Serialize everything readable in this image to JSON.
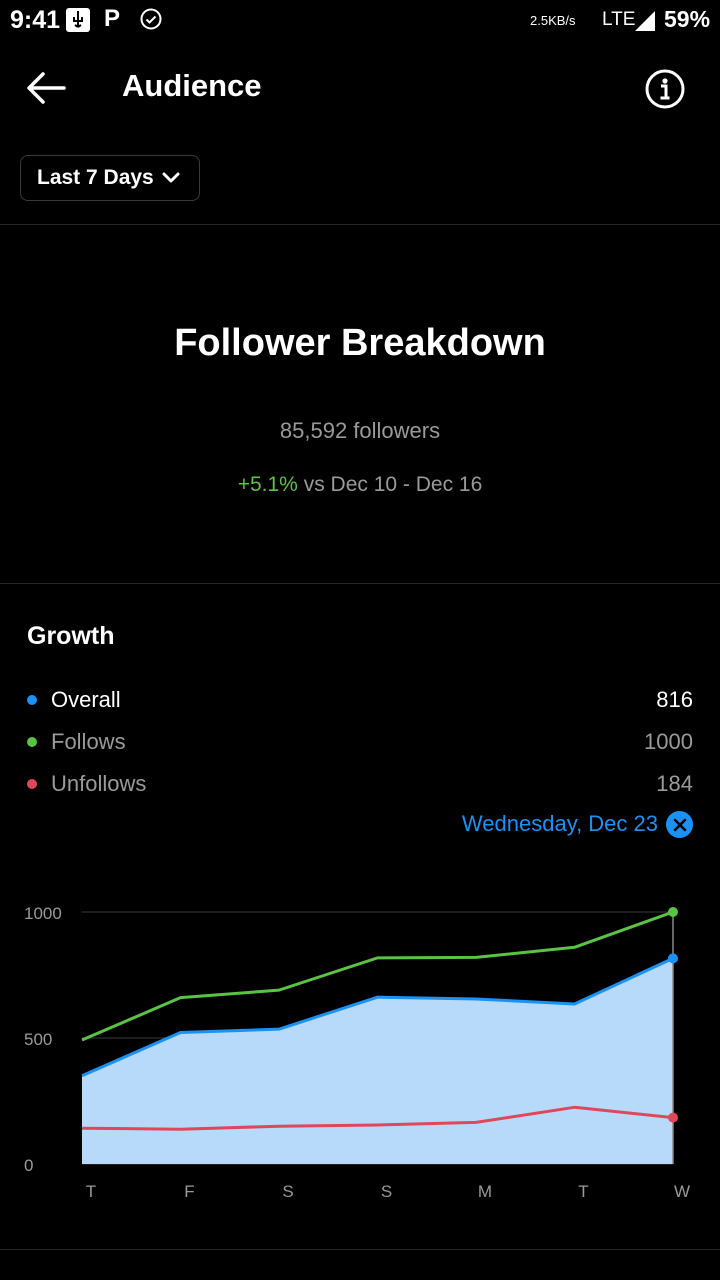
{
  "status_bar": {
    "time": "9:41",
    "p_icon_label": "P",
    "network_speed": "2.5KB/s",
    "network_type": "LTE",
    "battery": "59%"
  },
  "header": {
    "title": "Audience",
    "back_icon": "arrow-left-icon",
    "info_icon": "info-circle-icon"
  },
  "filter": {
    "period_label": "Last 7 Days"
  },
  "breakdown": {
    "title": "Follower Breakdown",
    "followers": "85,592 followers",
    "change_pct": "+5.1%",
    "change_text": " vs Dec 10 - Dec 16"
  },
  "growth": {
    "title": "Growth",
    "legend": [
      {
        "label": "Overall",
        "value": "816",
        "color": "#1a91f5"
      },
      {
        "label": "Follows",
        "value": "1000",
        "color": "#5ac343"
      },
      {
        "label": "Unfollows",
        "value": "184",
        "color": "#e0475a"
      }
    ],
    "selected_date": "Wednesday, Dec 23"
  },
  "colors": {
    "accent_blue": "#1a91f5",
    "green": "#5ac343",
    "red": "#e0475a",
    "area_fill": "#b7dafb"
  },
  "chart_data": {
    "type": "area",
    "categories": [
      "T",
      "F",
      "S",
      "S",
      "M",
      "T",
      "W"
    ],
    "ylim": [
      0,
      1000
    ],
    "yticks": [
      "0",
      "500",
      "1000"
    ],
    "series": [
      {
        "name": "Overall",
        "values": [
          350,
          522,
          535,
          662,
          655,
          635,
          816
        ],
        "color": "#1a91f5",
        "fill": true
      },
      {
        "name": "Follows",
        "values": [
          492,
          660,
          690,
          818,
          820,
          860,
          1000
        ],
        "color": "#5ac343",
        "fill": false
      },
      {
        "name": "Unfollows",
        "values": [
          142,
          138,
          150,
          155,
          165,
          225,
          184
        ],
        "color": "#e0475a",
        "fill": false
      }
    ],
    "selected_index": 6
  }
}
